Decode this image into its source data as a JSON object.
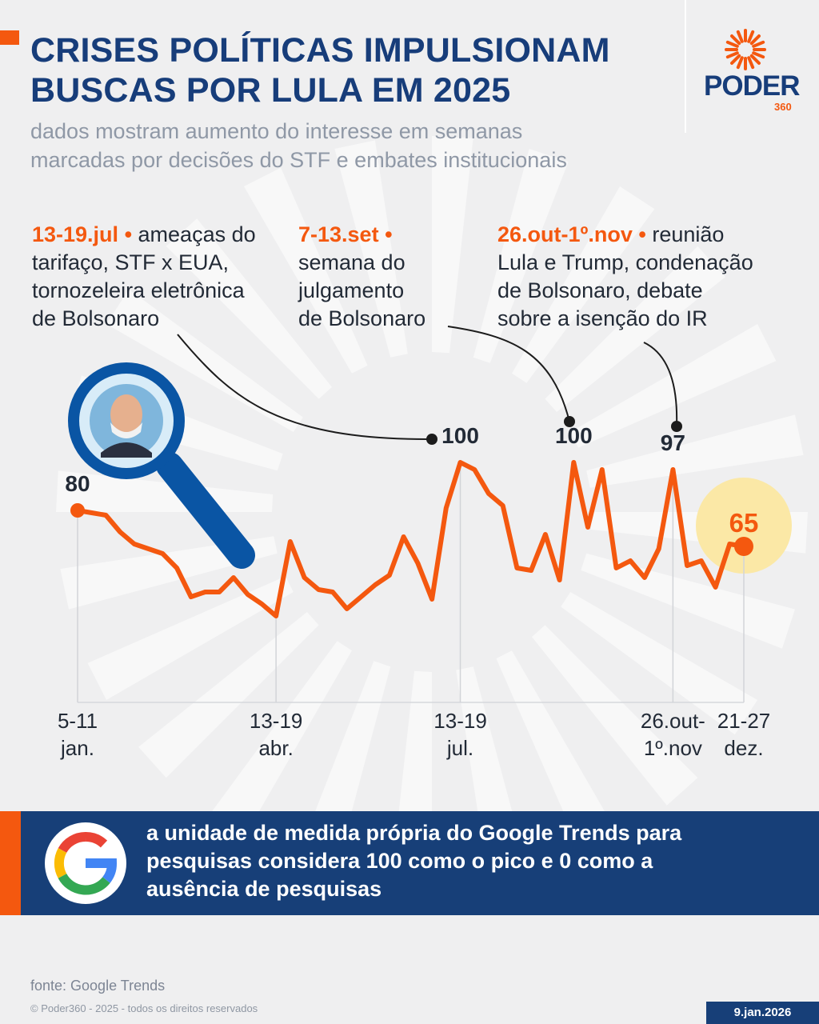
{
  "header": {
    "title_lines": [
      "CRISES POLÍTICAS IMPULSIONAM",
      "BUSCAS POR LULA EM 2025"
    ],
    "subtitle_lines": [
      "dados mostram aumento do interesse em semanas",
      "marcadas por decisões do STF e embates institucionais"
    ]
  },
  "logo": {
    "word": "PODER",
    "sub": "360",
    "icon": "sunburst-icon"
  },
  "annotations": [
    {
      "date": "13-19.jul",
      "bullet": " • ",
      "lines": [
        "ameaças do",
        "tarifaço, STF x EUA,",
        "tornozeleira eletrônica",
        "de Bolsonaro"
      ]
    },
    {
      "date": "7-13.set",
      "bullet": " • ",
      "lines": [
        "",
        "semana do",
        "julgamento",
        "de Bolsonaro"
      ]
    },
    {
      "date": "26.out-1º.nov",
      "bullet": " • ",
      "lines": [
        "reunião",
        "Lula e Trump, condenação",
        "de Bolsonaro, debate",
        "sobre a isenção do IR"
      ]
    }
  ],
  "chart_data": {
    "type": "line",
    "title": "CRISES POLÍTICAS IMPULSIONAM BUSCAS POR LULA EM 2025",
    "xlabel": "",
    "ylabel": "",
    "ylim": [
      0,
      100
    ],
    "grid": false,
    "series": [
      {
        "color": "#f4580f",
        "values": [
          80,
          79,
          78,
          71,
          66,
          64,
          62,
          56,
          44,
          46,
          46,
          52,
          45,
          41,
          36,
          67,
          52,
          47,
          46,
          39,
          44,
          49,
          53,
          69,
          58,
          43,
          81,
          100,
          97,
          87,
          82,
          56,
          55,
          70,
          51,
          100,
          73,
          97,
          56,
          59,
          52,
          64,
          97,
          57,
          59,
          48,
          66,
          65
        ]
      }
    ],
    "x_labels": [
      {
        "index": 0,
        "lines": [
          "5-11",
          "jan."
        ]
      },
      {
        "index": 14,
        "lines": [
          "13-19",
          "abr."
        ]
      },
      {
        "index": 27,
        "lines": [
          "13-19",
          "jul."
        ]
      },
      {
        "index": 42,
        "lines": [
          "26.out-",
          "1º.nov"
        ]
      },
      {
        "index": 47,
        "lines": [
          "21-27",
          "dez."
        ]
      }
    ],
    "data_labels": [
      {
        "index": 0,
        "text": "80"
      },
      {
        "index": 27,
        "text": "100"
      },
      {
        "index": 35,
        "text": "100"
      },
      {
        "index": 42,
        "text": "97"
      },
      {
        "index": 47,
        "text": "65"
      }
    ]
  },
  "icons": {
    "magnifier": "magnifier-lula-icon",
    "google": "google-logo-icon"
  },
  "info_bar": {
    "lines": [
      "a unidade de medida própria do Google Trends para",
      "pesquisas considera 100 como o pico e 0 como a",
      "ausência de pesquisas"
    ]
  },
  "footer": {
    "source": "fonte: Google Trends",
    "copyright": "© Poder360 - 2025 - todos os direitos reservados",
    "date": "9.jan.2026"
  },
  "colors": {
    "navy": "#173d7a",
    "orange": "#f4580f",
    "background": "#efeff0",
    "highlight": "#fbe8a6",
    "text_dark": "#222a36"
  }
}
